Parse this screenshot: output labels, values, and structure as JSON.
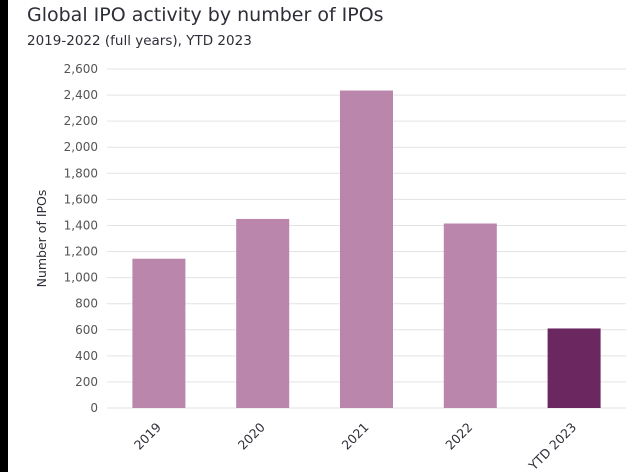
{
  "colors": {
    "background": "#ffffff",
    "bar": "#bb86ab",
    "bar_highlight": "#6b2760",
    "grid": "#e3e3e3",
    "text": "#2e2e38"
  },
  "chart_data": {
    "type": "bar",
    "title": "Global IPO activity by number of IPOs",
    "subtitle": "2019-2022 (full years), YTD 2023",
    "xlabel": "",
    "ylabel": "Number of IPOs",
    "categories": [
      "2019",
      "2020",
      "2021",
      "2022",
      "YTD 2023"
    ],
    "values": [
      1145,
      1450,
      2435,
      1415,
      610
    ],
    "highlight": [
      false,
      false,
      false,
      false,
      true
    ],
    "ylim": [
      0,
      2600
    ],
    "yticks": [
      0,
      200,
      400,
      600,
      800,
      1000,
      1200,
      1400,
      1600,
      1800,
      2000,
      2200,
      2400,
      2600
    ],
    "ytick_labels": [
      "0",
      "200",
      "400",
      "600",
      "800",
      "1,000",
      "1,200",
      "1,400",
      "1,600",
      "1,800",
      "2,000",
      "2,200",
      "2,400",
      "2,600"
    ],
    "grid": true,
    "legend": "none"
  }
}
